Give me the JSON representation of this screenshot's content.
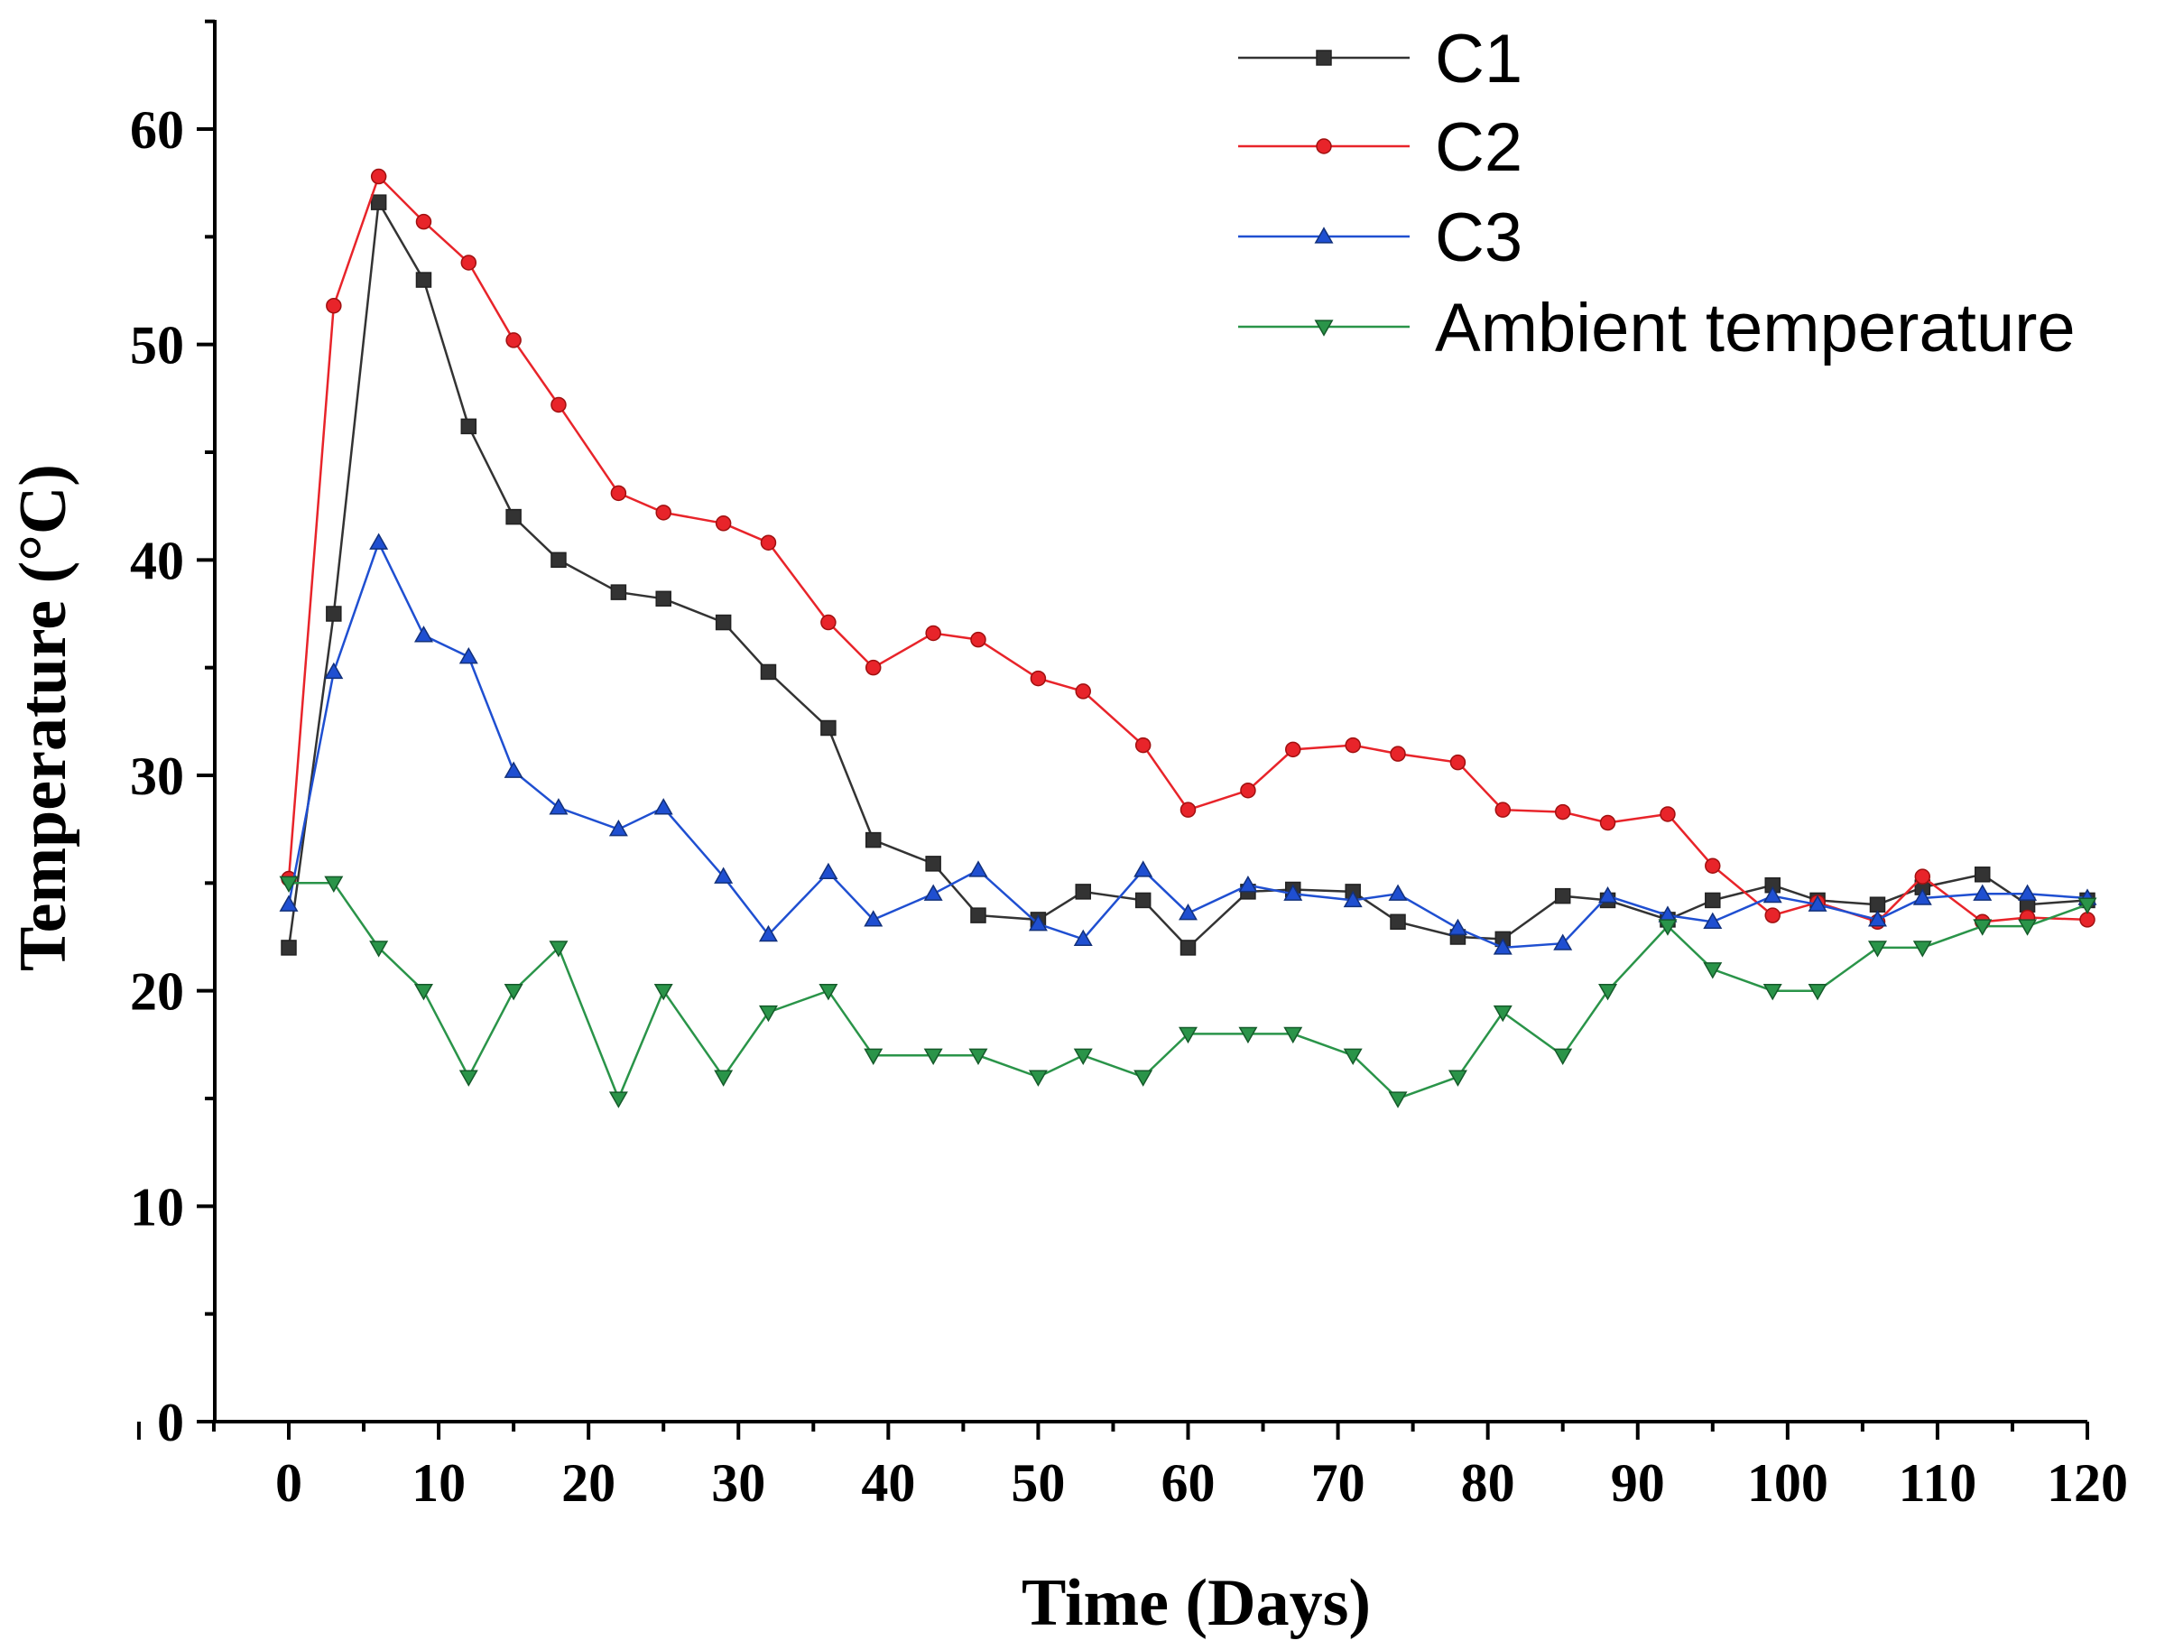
{
  "chart_data": {
    "type": "line",
    "title": "",
    "xlabel": "Time (Days)",
    "ylabel": "Temperature (°C)",
    "xlim": [
      -10,
      120
    ],
    "ylim": [
      0,
      65
    ],
    "xticks": [
      0,
      10,
      20,
      30,
      40,
      50,
      60,
      70,
      80,
      90,
      100,
      110,
      120
    ],
    "yticks": [
      0,
      10,
      20,
      30,
      40,
      50,
      60
    ],
    "grid": false,
    "legend_position": "top-right",
    "series": [
      {
        "name": "C1",
        "color": "#333333",
        "marker": "square",
        "x": [
          0,
          3,
          6,
          9,
          12,
          15,
          18,
          22,
          25,
          29,
          32,
          36,
          39,
          43,
          46,
          50,
          53,
          57,
          60,
          64,
          67,
          71,
          74,
          78,
          81,
          85,
          88,
          92,
          95,
          99,
          102,
          106,
          109,
          113,
          116,
          120
        ],
        "y": [
          22.0,
          37.5,
          56.6,
          53.0,
          46.2,
          42.0,
          40.0,
          38.5,
          38.2,
          37.1,
          34.8,
          32.2,
          27.0,
          25.9,
          23.5,
          23.3,
          24.6,
          24.2,
          22.0,
          24.6,
          24.7,
          24.6,
          23.2,
          22.5,
          22.4,
          24.4,
          24.2,
          23.3,
          24.2,
          24.9,
          24.2,
          24.0,
          24.8,
          25.4,
          24.0,
          24.2
        ]
      },
      {
        "name": "C2",
        "color": "#e8242a",
        "marker": "circle",
        "x": [
          0,
          3,
          6,
          9,
          12,
          15,
          18,
          22,
          25,
          29,
          32,
          36,
          39,
          43,
          46,
          50,
          53,
          57,
          60,
          64,
          67,
          71,
          74,
          78,
          81,
          85,
          88,
          92,
          95,
          99,
          102,
          106,
          109,
          113,
          116,
          120
        ],
        "y": [
          25.2,
          51.8,
          57.8,
          55.7,
          53.8,
          50.2,
          47.2,
          43.1,
          42.2,
          41.7,
          40.8,
          37.1,
          35.0,
          36.6,
          36.3,
          34.5,
          33.9,
          31.4,
          28.4,
          29.3,
          31.2,
          31.4,
          31.0,
          30.6,
          28.4,
          28.3,
          27.8,
          28.2,
          25.8,
          23.5,
          24.1,
          23.2,
          25.3,
          23.2,
          23.4,
          23.3
        ]
      },
      {
        "name": "C3",
        "color": "#1f4fd1",
        "marker": "triangle-up",
        "x": [
          0,
          3,
          6,
          9,
          12,
          15,
          18,
          22,
          25,
          29,
          32,
          36,
          39,
          43,
          46,
          50,
          53,
          57,
          60,
          64,
          67,
          71,
          74,
          78,
          81,
          85,
          88,
          92,
          95,
          99,
          102,
          106,
          109,
          113,
          116,
          120
        ],
        "y": [
          24.0,
          34.8,
          40.8,
          36.5,
          35.5,
          30.2,
          28.5,
          27.5,
          28.5,
          25.3,
          22.6,
          25.5,
          23.3,
          24.5,
          25.6,
          23.1,
          22.4,
          25.6,
          23.6,
          24.9,
          24.5,
          24.2,
          24.5,
          22.9,
          22.0,
          22.2,
          24.4,
          23.5,
          23.2,
          24.4,
          24.0,
          23.3,
          24.3,
          24.5,
          24.5,
          24.3
        ]
      },
      {
        "name": "Ambient temperature",
        "color": "#2a9449",
        "marker": "triangle-down",
        "x": [
          0,
          3,
          6,
          9,
          12,
          15,
          18,
          22,
          25,
          29,
          32,
          36,
          39,
          43,
          46,
          50,
          53,
          57,
          60,
          64,
          67,
          71,
          74,
          78,
          81,
          85,
          88,
          92,
          95,
          99,
          102,
          106,
          109,
          113,
          116,
          120
        ],
        "y": [
          25,
          25,
          22,
          20,
          16,
          20,
          22,
          15,
          20,
          16,
          19,
          20,
          17,
          17,
          17,
          16,
          17,
          16,
          18,
          18,
          18,
          17,
          15,
          16,
          19,
          17,
          20,
          23,
          21,
          20,
          20,
          22,
          22,
          23,
          23,
          24
        ]
      }
    ]
  }
}
